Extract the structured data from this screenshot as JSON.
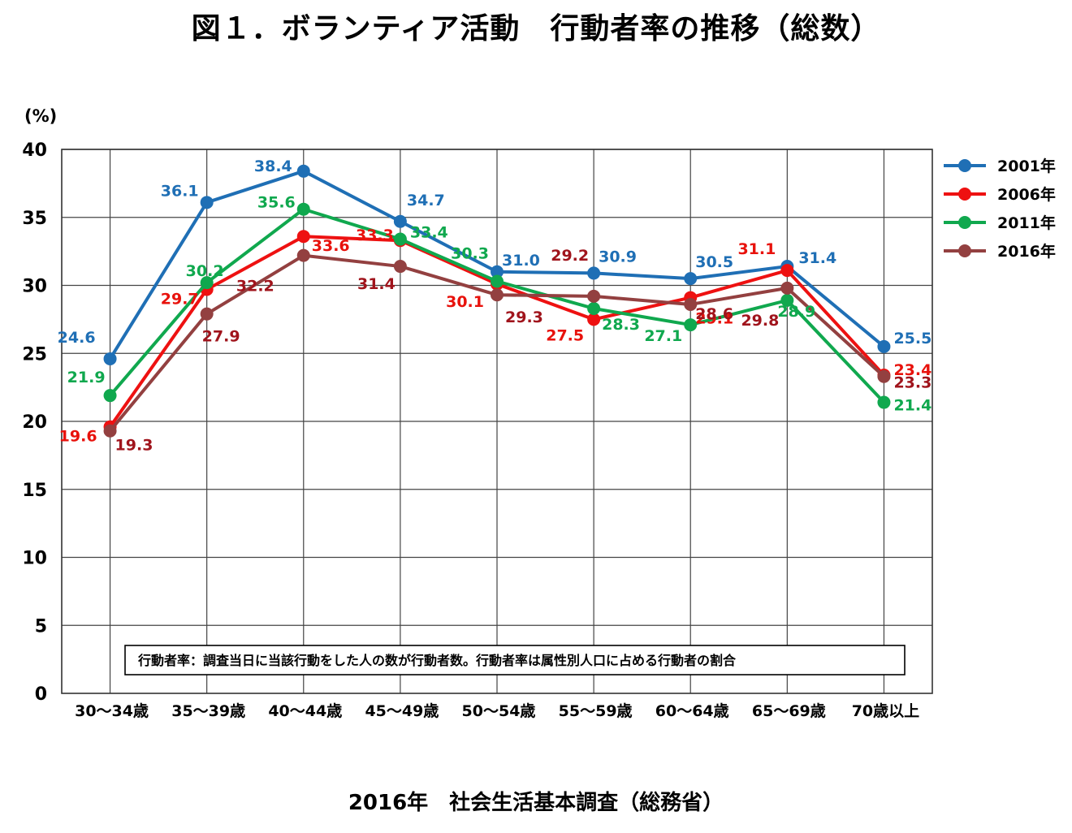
{
  "title": "図１．ボランティア活動　行動者率の推移（総数）",
  "source": "2016年　社会生活基本調査（総務省）",
  "note": "行動者率：調査当日に当該行動をした人の数が行動者数。行動者率は属性別人口に占める行動者の割合",
  "chart_data": {
    "type": "line",
    "ylabel": "(%)",
    "ylim": [
      0,
      40
    ],
    "yticks": [
      0,
      5,
      10,
      15,
      20,
      25,
      30,
      35,
      40
    ],
    "grid": true,
    "legend_position": "right",
    "categories": [
      "30～34歳",
      "35～39歳",
      "40～44歳",
      "45～49歳",
      "50～54歳",
      "55～59歳",
      "60～64歳",
      "65～69歳",
      "70歳以上"
    ],
    "series": [
      {
        "name": "2001年",
        "color": "#1f6fb5",
        "label_color": "#1f6fb5",
        "values": [
          24.6,
          36.1,
          38.4,
          34.7,
          31.0,
          30.9,
          30.5,
          31.4,
          25.5
        ]
      },
      {
        "name": "2006年",
        "color": "#ee1111",
        "label_color": "#e8120c",
        "values": [
          19.6,
          29.7,
          33.6,
          33.3,
          30.1,
          27.5,
          29.1,
          31.1,
          23.4
        ]
      },
      {
        "name": "2011年",
        "color": "#10a84e",
        "label_color": "#10a84e",
        "values": [
          21.9,
          30.2,
          35.6,
          33.4,
          30.3,
          28.3,
          27.1,
          28.9,
          21.4
        ]
      },
      {
        "name": "2016年",
        "color": "#934040",
        "label_color": "#a0141c",
        "values": [
          19.3,
          27.9,
          32.2,
          31.4,
          29.3,
          29.2,
          28.6,
          29.8,
          23.3
        ]
      }
    ]
  }
}
